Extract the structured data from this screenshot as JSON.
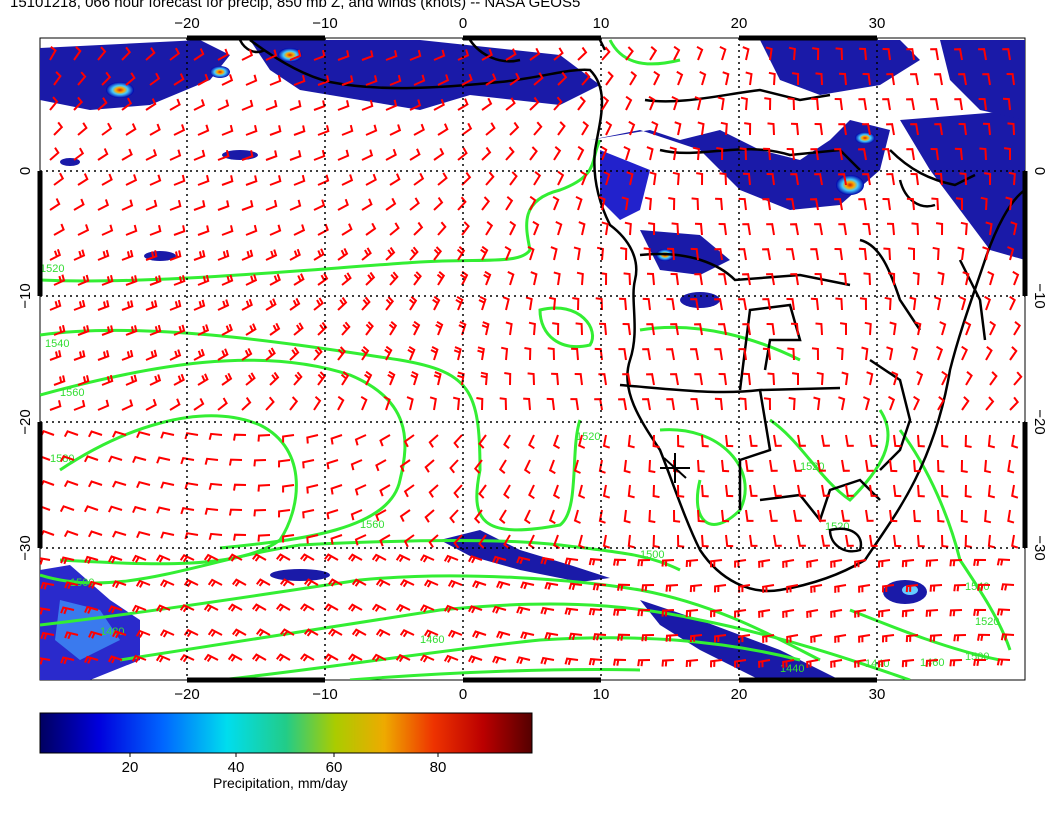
{
  "title": "15101218, 066 hour forecast for precip, 850 mb Z, and winds (knots) -- NASA GEOS5",
  "map": {
    "lon_range": [
      -30,
      40
    ],
    "lat_range": [
      -40,
      10
    ],
    "lon_ticks": [
      -20,
      -10,
      0,
      10,
      20,
      30
    ],
    "lat_ticks": [
      0,
      -10,
      -20,
      -30
    ],
    "lon_tick_labels": [
      "−20",
      "−10",
      "0",
      "10",
      "20",
      "30"
    ],
    "lat_tick_labels": [
      "0",
      "−10",
      "−20",
      "−30"
    ],
    "contour_labels": [
      "1540",
      "1560",
      "1580",
      "1520",
      "1560",
      "1500",
      "1480",
      "1460",
      "1440",
      "1520",
      "1500",
      "1520",
      "1520",
      "1540",
      "1520",
      "1500",
      "1460",
      "1440"
    ],
    "colors": {
      "wind_barbs": "#ff0000",
      "height_contours": "#33ee33",
      "coastlines": "#000000",
      "grid": "#000000"
    }
  },
  "colorbar": {
    "title": "Precipitation, mm/day",
    "ticks": [
      20,
      40,
      60,
      80
    ],
    "range": [
      0,
      100
    ],
    "colors": [
      "#000080",
      "#0000ff",
      "#00ccff",
      "#00cc66",
      "#cccc00",
      "#ff8800",
      "#cc0000",
      "#660000"
    ]
  }
}
